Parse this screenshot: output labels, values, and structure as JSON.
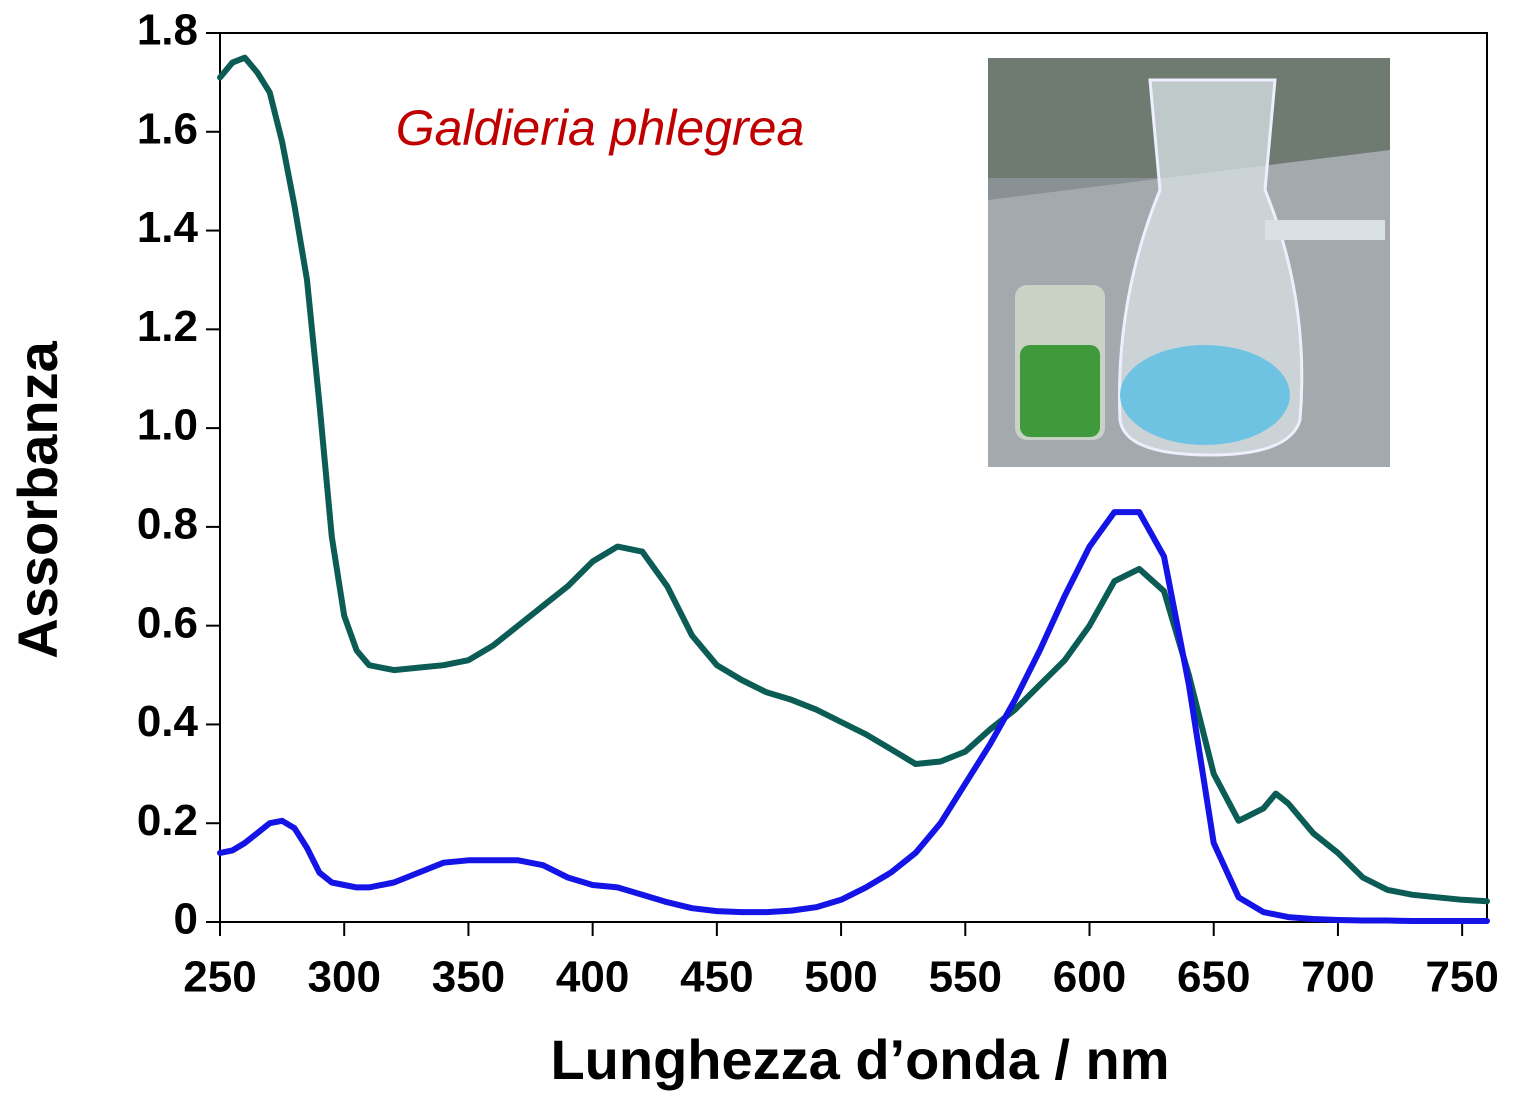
{
  "chart_data": {
    "type": "line",
    "annotation": "Galdieria phlegrea",
    "xlabel": "Lunghezza d’onda / nm",
    "ylabel": "Assorbanza",
    "xlim": [
      250,
      760
    ],
    "ylim": [
      0,
      1.8
    ],
    "xticks": [
      250,
      300,
      350,
      400,
      450,
      500,
      550,
      600,
      650,
      700,
      750
    ],
    "yticks": [
      0,
      0.2,
      0.4,
      0.6,
      0.8,
      {
        "value": 1,
        "label": "1.0"
      },
      1.2,
      1.4,
      1.6,
      1.8
    ],
    "x": [
      250,
      255,
      260,
      265,
      270,
      275,
      280,
      285,
      290,
      295,
      300,
      305,
      310,
      320,
      330,
      340,
      350,
      360,
      370,
      380,
      390,
      400,
      410,
      420,
      430,
      440,
      450,
      460,
      470,
      480,
      490,
      500,
      510,
      520,
      530,
      540,
      550,
      560,
      570,
      580,
      590,
      600,
      610,
      620,
      630,
      640,
      650,
      660,
      670,
      675,
      680,
      690,
      700,
      710,
      720,
      730,
      740,
      750,
      760
    ],
    "series": [
      {
        "color": "#0b5c55",
        "values": [
          1.71,
          1.74,
          1.75,
          1.72,
          1.68,
          1.58,
          1.45,
          1.3,
          1.05,
          0.78,
          0.62,
          0.55,
          0.52,
          0.51,
          0.515,
          0.52,
          0.53,
          0.56,
          0.6,
          0.64,
          0.68,
          0.73,
          0.76,
          0.75,
          0.68,
          0.58,
          0.52,
          0.49,
          0.465,
          0.45,
          0.43,
          0.405,
          0.38,
          0.35,
          0.32,
          0.325,
          0.345,
          0.39,
          0.43,
          0.48,
          0.53,
          0.6,
          0.69,
          0.715,
          0.67,
          0.5,
          0.3,
          0.205,
          0.23,
          0.26,
          0.24,
          0.18,
          0.14,
          0.09,
          0.065,
          0.055,
          0.05,
          0.045,
          0.042
        ]
      },
      {
        "color": "#1414e6",
        "values": [
          0.14,
          0.145,
          0.16,
          0.18,
          0.2,
          0.205,
          0.19,
          0.15,
          0.1,
          0.08,
          0.075,
          0.07,
          0.07,
          0.08,
          0.1,
          0.12,
          0.125,
          0.125,
          0.125,
          0.115,
          0.09,
          0.075,
          0.07,
          0.055,
          0.04,
          0.028,
          0.022,
          0.02,
          0.02,
          0.023,
          0.03,
          0.045,
          0.07,
          0.1,
          0.14,
          0.2,
          0.28,
          0.36,
          0.45,
          0.55,
          0.66,
          0.76,
          0.83,
          0.83,
          0.74,
          0.48,
          0.16,
          0.05,
          0.02,
          0.015,
          0.01,
          0.006,
          0.004,
          0.003,
          0.003,
          0.002,
          0.002,
          0.002,
          0.002
        ]
      }
    ]
  }
}
